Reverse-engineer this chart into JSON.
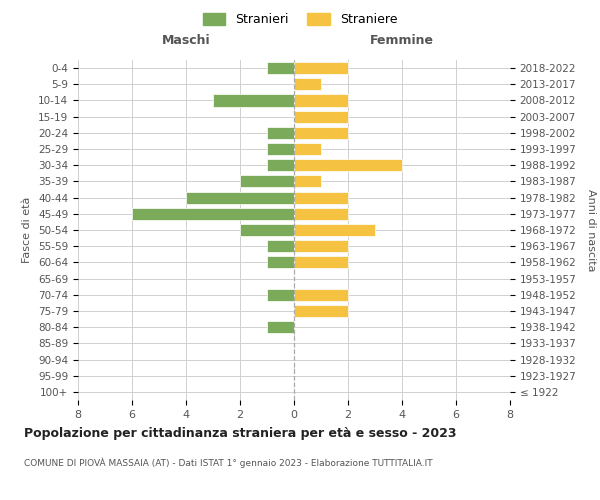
{
  "age_groups": [
    "100+",
    "95-99",
    "90-94",
    "85-89",
    "80-84",
    "75-79",
    "70-74",
    "65-69",
    "60-64",
    "55-59",
    "50-54",
    "45-49",
    "40-44",
    "35-39",
    "30-34",
    "25-29",
    "20-24",
    "15-19",
    "10-14",
    "5-9",
    "0-4"
  ],
  "birth_years": [
    "≤ 1922",
    "1923-1927",
    "1928-1932",
    "1933-1937",
    "1938-1942",
    "1943-1947",
    "1948-1952",
    "1953-1957",
    "1958-1962",
    "1963-1967",
    "1968-1972",
    "1973-1977",
    "1978-1982",
    "1983-1987",
    "1988-1992",
    "1993-1997",
    "1998-2002",
    "2003-2007",
    "2008-2012",
    "2013-2017",
    "2018-2022"
  ],
  "stranieri": [
    0,
    0,
    0,
    0,
    1,
    0,
    1,
    0,
    1,
    1,
    2,
    6,
    4,
    2,
    1,
    1,
    1,
    0,
    3,
    0,
    1
  ],
  "straniere": [
    0,
    0,
    0,
    0,
    0,
    2,
    2,
    0,
    2,
    2,
    3,
    2,
    2,
    1,
    4,
    1,
    2,
    2,
    2,
    1,
    2
  ],
  "color_stranieri": "#7aaa5a",
  "color_straniere": "#f5c242",
  "background_color": "#ffffff",
  "grid_color": "#d0d0d0",
  "title": "Popolazione per cittadinanza straniera per età e sesso - 2023",
  "subtitle": "COMUNE DI PIOVÀ MASSAIA (AT) - Dati ISTAT 1° gennaio 2023 - Elaborazione TUTTITALIA.IT",
  "xlabel_left": "Maschi",
  "xlabel_right": "Femmine",
  "ylabel_left": "Fasce di età",
  "ylabel_right": "Anni di nascita",
  "xlim": 8,
  "legend_stranieri": "Stranieri",
  "legend_straniere": "Straniere"
}
